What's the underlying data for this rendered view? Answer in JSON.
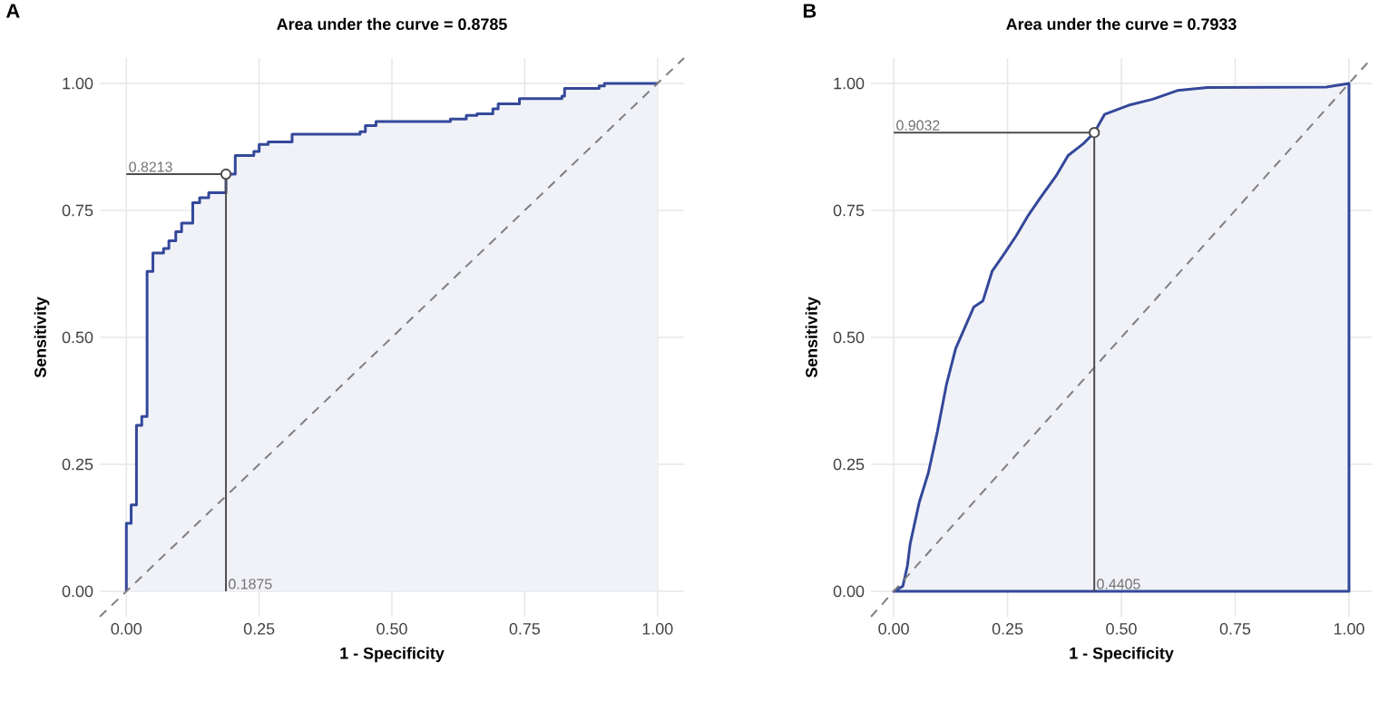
{
  "chart_data": [
    {
      "type": "area",
      "title": "Area under the curve = 0.8785",
      "xlabel": "1 - Specificity",
      "ylabel": "Sensitivity",
      "xlim": [
        -0.05,
        1.05
      ],
      "ylim": [
        -0.05,
        1.05
      ],
      "xticks": [
        {
          "value": 0,
          "label": "0.00"
        },
        {
          "value": 0.25,
          "label": "0.25"
        },
        {
          "value": 0.5,
          "label": "0.50"
        },
        {
          "value": 0.75,
          "label": "0.75"
        },
        {
          "value": 1,
          "label": "1.00"
        }
      ],
      "yticks": [
        {
          "value": 0,
          "label": "0.00"
        },
        {
          "value": 0.25,
          "label": "0.25"
        },
        {
          "value": 0.5,
          "label": "0.50"
        },
        {
          "value": 0.75,
          "label": "0.75"
        },
        {
          "value": 1,
          "label": "1.00"
        }
      ],
      "grid": true,
      "series": [
        {
          "type": "step",
          "color": "#34489a",
          "x": [
            0,
            0,
            0.009,
            0.019,
            0.029,
            0.039,
            0.05,
            0.07,
            0.08,
            0.093,
            0.104,
            0.125,
            0.138,
            0.155,
            0.1875,
            0.205,
            0.24,
            0.25,
            0.267,
            0.312,
            0.44,
            0.45,
            0.47,
            0.61,
            0.64,
            0.66,
            0.69,
            0.7,
            0.74,
            0.82,
            0.825,
            0.89,
            0.9,
            1
          ],
          "values": [
            0,
            0.134,
            0.17,
            0.327,
            0.344,
            0.63,
            0.666,
            0.675,
            0.69,
            0.708,
            0.725,
            0.765,
            0.775,
            0.785,
            0.8213,
            0.858,
            0.866,
            0.88,
            0.885,
            0.9,
            0.905,
            0.917,
            0.925,
            0.93,
            0.937,
            0.94,
            0.95,
            0.96,
            0.97,
            0.975,
            0.99,
            0.995,
            1,
            1
          ]
        },
        {
          "type": "line",
          "line_style": "dashed",
          "color": "#7f7f7f",
          "x": [
            -0.05,
            1.05
          ],
          "values": [
            -0.05,
            1.05
          ]
        },
        {
          "type": "line",
          "color": "#4d4d4d",
          "x": [
            0,
            0.1875,
            0.1875
          ],
          "values": [
            0.8213,
            0.8213,
            0
          ]
        },
        {
          "type": "scatter",
          "marker": "circle",
          "color": "#4d4d4d",
          "x": [
            0.1875
          ],
          "values": [
            0.8213
          ]
        }
      ],
      "annotations": [
        "A",
        {
          "text": "0.8213",
          "x": 0,
          "y": 0.8213
        },
        {
          "text": "0.1875",
          "x": 0.1875,
          "y": 0
        }
      ]
    },
    {
      "type": "area",
      "title": "Area under the curve = 0.7933",
      "xlabel": "1 - Specificity",
      "ylabel": "Sensitivity",
      "xlim": [
        -0.05,
        1.05
      ],
      "ylim": [
        -0.05,
        1.05
      ],
      "xticks": [
        {
          "value": 0,
          "label": "0.00"
        },
        {
          "value": 0.25,
          "label": "0.25"
        },
        {
          "value": 0.5,
          "label": "0.50"
        },
        {
          "value": 0.75,
          "label": "0.75"
        },
        {
          "value": 1,
          "label": "1.00"
        }
      ],
      "yticks": [
        {
          "value": 0,
          "label": "0.00"
        },
        {
          "value": 0.25,
          "label": "0.25"
        },
        {
          "value": 0.5,
          "label": "0.50"
        },
        {
          "value": 0.75,
          "label": "0.75"
        },
        {
          "value": 1,
          "label": "1.00"
        }
      ],
      "grid": true,
      "series": [
        {
          "color": "#34489a",
          "x": [
            0,
            0.02,
            0.03,
            0.036,
            0.056,
            0.076,
            0.096,
            0.116,
            0.136,
            0.156,
            0.176,
            0.196,
            0.216,
            0.243,
            0.269,
            0.296,
            0.323,
            0.356,
            0.383,
            0.416,
            0.4405,
            0.463,
            0.516,
            0.569,
            0.623,
            0.689,
            0.95,
            1
          ],
          "values": [
            0,
            0.01,
            0.05,
            0.093,
            0.175,
            0.233,
            0.315,
            0.408,
            0.478,
            0.519,
            0.56,
            0.572,
            0.63,
            0.665,
            0.7,
            0.741,
            0.776,
            0.817,
            0.858,
            0.881,
            0.9032,
            0.939,
            0.957,
            0.969,
            0.986,
            0.992,
            0.993,
            1
          ]
        },
        {
          "type": "line",
          "line_style": "dashed",
          "color": "#7f7f7f",
          "x": [
            -0.05,
            1.05
          ],
          "values": [
            -0.05,
            1.05
          ]
        },
        {
          "type": "line",
          "color": "#4d4d4d",
          "x": [
            0,
            0.4405,
            0.4405
          ],
          "values": [
            0.9032,
            0.9032,
            0
          ]
        },
        {
          "type": "scatter",
          "marker": "circle",
          "color": "#4d4d4d",
          "x": [
            0.4405
          ],
          "values": [
            0.9032
          ]
        }
      ],
      "annotations": [
        "B",
        {
          "text": "0.9032",
          "x": 0,
          "y": 0.9032
        },
        {
          "text": "0.4405",
          "x": 0.4405,
          "y": 0
        }
      ]
    }
  ]
}
